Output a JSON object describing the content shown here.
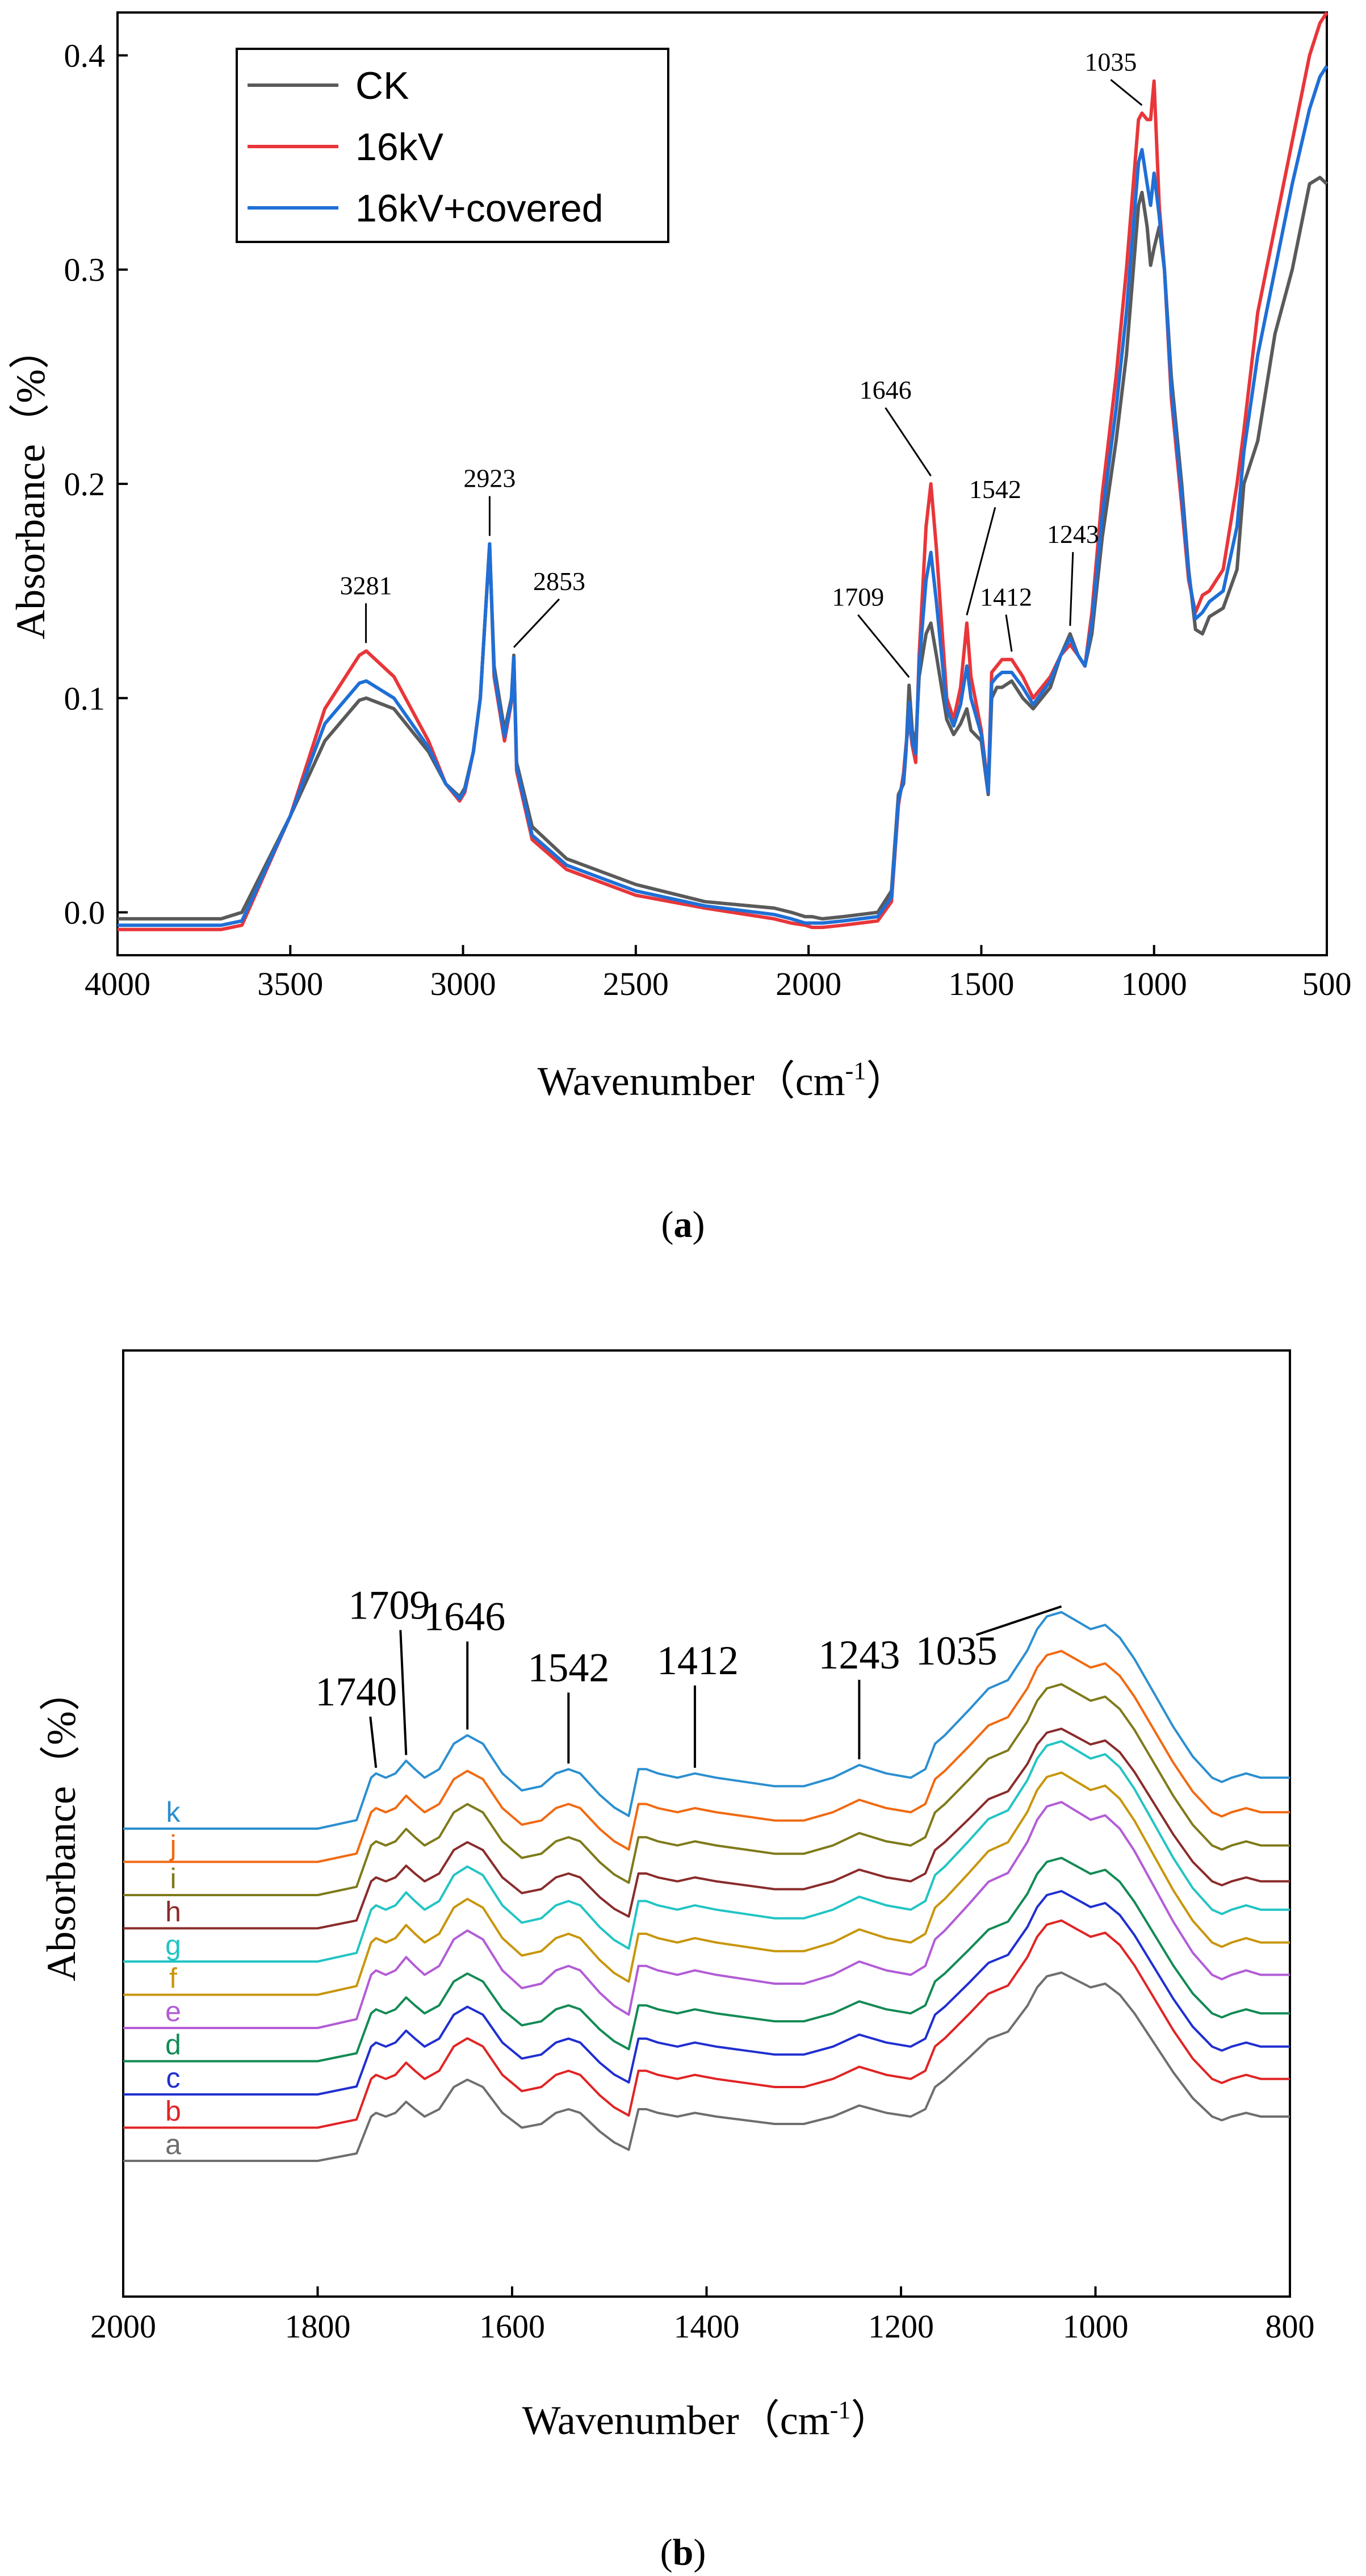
{
  "chart_data": [
    {
      "panel": "a",
      "type": "line",
      "caption_letter": "a",
      "xlabel": "Wavenumber（cm",
      "xlabel_sup": "-1",
      "xlabel_close": "）",
      "ylabel": "Absorbance（%）",
      "xlim": [
        4000,
        500
      ],
      "ylim": [
        -0.02,
        0.42
      ],
      "x_ticks": [
        "4000",
        "3500",
        "3000",
        "2500",
        "2000",
        "1500",
        "1000",
        "500"
      ],
      "x_tick_values": [
        4000,
        3500,
        3000,
        2500,
        2000,
        1500,
        1000,
        500
      ],
      "y_ticks": [
        "0.0",
        "0.1",
        "0.2",
        "0.3",
        "0.4"
      ],
      "y_tick_values": [
        0.0,
        0.1,
        0.2,
        0.3,
        0.4
      ],
      "legend": {
        "placement": "top-left",
        "entries": [
          "CK",
          "16kV",
          "16kV+covered"
        ]
      },
      "series": [
        {
          "name": "CK",
          "color": "#5a5a5a",
          "x": [
            4000,
            3700,
            3640,
            3500,
            3400,
            3300,
            3280,
            3200,
            3100,
            3050,
            3010,
            2995,
            2970,
            2950,
            2935,
            2923,
            2910,
            2880,
            2860,
            2853,
            2845,
            2800,
            2700,
            2500,
            2300,
            2100,
            2050,
            2010,
            1990,
            1960,
            1900,
            1800,
            1760,
            1740,
            1725,
            1718,
            1709,
            1700,
            1690,
            1680,
            1660,
            1646,
            1630,
            1600,
            1580,
            1560,
            1542,
            1530,
            1500,
            1480,
            1470,
            1455,
            1440,
            1412,
            1380,
            1350,
            1300,
            1270,
            1243,
            1220,
            1200,
            1180,
            1150,
            1110,
            1080,
            1060,
            1045,
            1035,
            1020,
            1010,
            1000,
            985,
            970,
            950,
            920,
            900,
            880,
            860,
            840,
            800,
            760,
            740,
            700,
            650,
            600,
            550,
            520,
            500
          ],
          "y": [
            -0.003,
            -0.003,
            0.0,
            0.045,
            0.08,
            0.099,
            0.1,
            0.095,
            0.075,
            0.06,
            0.054,
            0.058,
            0.075,
            0.1,
            0.14,
            0.17,
            0.115,
            0.085,
            0.1,
            0.12,
            0.07,
            0.04,
            0.025,
            0.013,
            0.005,
            0.002,
            0.0,
            -0.002,
            -0.002,
            -0.003,
            -0.002,
            0.0,
            0.01,
            0.055,
            0.06,
            0.075,
            0.106,
            0.085,
            0.078,
            0.11,
            0.13,
            0.135,
            0.12,
            0.09,
            0.083,
            0.088,
            0.095,
            0.085,
            0.08,
            0.055,
            0.1,
            0.105,
            0.105,
            0.108,
            0.1,
            0.095,
            0.105,
            0.12,
            0.13,
            0.12,
            0.115,
            0.13,
            0.175,
            0.22,
            0.26,
            0.3,
            0.33,
            0.336,
            0.32,
            0.302,
            0.31,
            0.32,
            0.3,
            0.25,
            0.2,
            0.16,
            0.132,
            0.13,
            0.138,
            0.142,
            0.16,
            0.2,
            0.22,
            0.27,
            0.3,
            0.34,
            0.343,
            0.34
          ]
        },
        {
          "name": "16kV",
          "color": "#e8363a",
          "x": [
            4000,
            3700,
            3640,
            3500,
            3400,
            3300,
            3280,
            3200,
            3100,
            3050,
            3010,
            2995,
            2970,
            2950,
            2935,
            2923,
            2910,
            2880,
            2860,
            2853,
            2845,
            2800,
            2700,
            2500,
            2300,
            2100,
            2050,
            2010,
            1990,
            1960,
            1900,
            1800,
            1760,
            1740,
            1725,
            1718,
            1709,
            1700,
            1690,
            1680,
            1660,
            1646,
            1630,
            1600,
            1580,
            1560,
            1542,
            1530,
            1500,
            1480,
            1470,
            1455,
            1440,
            1412,
            1380,
            1350,
            1300,
            1270,
            1243,
            1220,
            1200,
            1180,
            1150,
            1110,
            1080,
            1060,
            1045,
            1035,
            1020,
            1010,
            1000,
            985,
            970,
            950,
            920,
            900,
            880,
            860,
            840,
            800,
            760,
            740,
            700,
            650,
            600,
            550,
            520,
            500
          ],
          "y": [
            -0.008,
            -0.008,
            -0.006,
            0.045,
            0.095,
            0.12,
            0.122,
            0.11,
            0.08,
            0.06,
            0.052,
            0.056,
            0.075,
            0.1,
            0.14,
            0.172,
            0.11,
            0.08,
            0.098,
            0.119,
            0.066,
            0.034,
            0.02,
            0.008,
            0.002,
            -0.003,
            -0.005,
            -0.006,
            -0.007,
            -0.007,
            -0.006,
            -0.004,
            0.005,
            0.05,
            0.065,
            0.078,
            0.09,
            0.078,
            0.07,
            0.12,
            0.18,
            0.2,
            0.17,
            0.1,
            0.09,
            0.105,
            0.135,
            0.11,
            0.085,
            0.058,
            0.112,
            0.115,
            0.118,
            0.118,
            0.11,
            0.1,
            0.11,
            0.12,
            0.125,
            0.12,
            0.115,
            0.14,
            0.195,
            0.25,
            0.3,
            0.34,
            0.37,
            0.373,
            0.37,
            0.37,
            0.388,
            0.33,
            0.3,
            0.24,
            0.19,
            0.155,
            0.14,
            0.148,
            0.15,
            0.16,
            0.2,
            0.225,
            0.28,
            0.32,
            0.36,
            0.4,
            0.415,
            0.42
          ]
        },
        {
          "name": "16kV+covered",
          "color": "#1f6fd6",
          "x": [
            4000,
            3700,
            3640,
            3500,
            3400,
            3300,
            3280,
            3200,
            3100,
            3050,
            3010,
            2995,
            2970,
            2950,
            2935,
            2923,
            2910,
            2880,
            2860,
            2853,
            2845,
            2800,
            2700,
            2500,
            2300,
            2100,
            2050,
            2010,
            1990,
            1960,
            1900,
            1800,
            1760,
            1740,
            1725,
            1718,
            1709,
            1700,
            1690,
            1680,
            1660,
            1646,
            1630,
            1600,
            1580,
            1560,
            1542,
            1530,
            1500,
            1480,
            1470,
            1455,
            1440,
            1412,
            1380,
            1350,
            1300,
            1270,
            1243,
            1220,
            1200,
            1180,
            1150,
            1110,
            1080,
            1060,
            1045,
            1035,
            1020,
            1010,
            1000,
            985,
            970,
            950,
            920,
            900,
            880,
            860,
            840,
            800,
            760,
            740,
            700,
            650,
            600,
            550,
            520,
            500
          ],
          "y": [
            -0.006,
            -0.006,
            -0.004,
            0.045,
            0.088,
            0.107,
            0.108,
            0.1,
            0.077,
            0.06,
            0.053,
            0.057,
            0.075,
            0.1,
            0.14,
            0.172,
            0.112,
            0.082,
            0.099,
            0.119,
            0.068,
            0.036,
            0.022,
            0.01,
            0.003,
            -0.001,
            -0.003,
            -0.005,
            -0.005,
            -0.005,
            -0.004,
            -0.002,
            0.007,
            0.052,
            0.062,
            0.076,
            0.098,
            0.08,
            0.074,
            0.115,
            0.155,
            0.168,
            0.145,
            0.095,
            0.087,
            0.097,
            0.115,
            0.1,
            0.083,
            0.056,
            0.107,
            0.11,
            0.112,
            0.112,
            0.105,
            0.097,
            0.108,
            0.12,
            0.128,
            0.12,
            0.115,
            0.135,
            0.185,
            0.235,
            0.28,
            0.32,
            0.35,
            0.356,
            0.34,
            0.33,
            0.345,
            0.325,
            0.3,
            0.245,
            0.195,
            0.158,
            0.137,
            0.14,
            0.145,
            0.15,
            0.18,
            0.215,
            0.26,
            0.3,
            0.34,
            0.375,
            0.39,
            0.395
          ]
        }
      ],
      "annotations": [
        {
          "text": "3281",
          "x": 3281,
          "y": 0.122
        },
        {
          "text": "2923",
          "x": 2923,
          "y": 0.172
        },
        {
          "text": "2853",
          "x": 2853,
          "y": 0.12
        },
        {
          "text": "1709",
          "x": 1709,
          "y": 0.106
        },
        {
          "text": "1646",
          "x": 1646,
          "y": 0.2
        },
        {
          "text": "1542",
          "x": 1542,
          "y": 0.135
        },
        {
          "text": "1412",
          "x": 1412,
          "y": 0.118
        },
        {
          "text": "1243",
          "x": 1243,
          "y": 0.13
        },
        {
          "text": "1035",
          "x": 1035,
          "y": 0.373
        }
      ]
    },
    {
      "panel": "b",
      "type": "line",
      "caption_letter": "b",
      "xlabel": "Wavenumber（cm",
      "xlabel_sup": "-1",
      "xlabel_close": "）",
      "ylabel": "Absorbance（%）",
      "xlim": [
        2000,
        800
      ],
      "ylim": [
        0,
        1.6
      ],
      "x_ticks": [
        "2000",
        "1800",
        "1600",
        "1400",
        "1200",
        "1000",
        "800"
      ],
      "x_tick_values": [
        2000,
        1800,
        1600,
        1400,
        1200,
        1000,
        800
      ],
      "y_ticks": [],
      "base_profile": {
        "x": [
          2000,
          1800,
          1760,
          1745,
          1740,
          1730,
          1720,
          1709,
          1700,
          1690,
          1675,
          1660,
          1646,
          1630,
          1610,
          1590,
          1570,
          1555,
          1542,
          1530,
          1510,
          1495,
          1480,
          1470,
          1462,
          1450,
          1430,
          1412,
          1390,
          1360,
          1330,
          1300,
          1270,
          1243,
          1215,
          1190,
          1175,
          1165,
          1155,
          1130,
          1110,
          1090,
          1070,
          1060,
          1050,
          1035,
          1020,
          1005,
          990,
          975,
          960,
          940,
          920,
          900,
          880,
          870,
          860,
          845,
          830,
          815,
          800
        ],
        "y": [
          0.0,
          0.0,
          0.02,
          0.12,
          0.13,
          0.12,
          0.13,
          0.16,
          0.14,
          0.12,
          0.14,
          0.2,
          0.22,
          0.2,
          0.13,
          0.09,
          0.1,
          0.13,
          0.14,
          0.13,
          0.08,
          0.05,
          0.03,
          0.14,
          0.14,
          0.13,
          0.12,
          0.13,
          0.12,
          0.11,
          0.1,
          0.1,
          0.12,
          0.15,
          0.13,
          0.12,
          0.14,
          0.2,
          0.22,
          0.28,
          0.33,
          0.35,
          0.42,
          0.47,
          0.5,
          0.51,
          0.49,
          0.47,
          0.48,
          0.45,
          0.4,
          0.32,
          0.24,
          0.17,
          0.12,
          0.11,
          0.12,
          0.13,
          0.12,
          0.12,
          0.12
        ]
      },
      "series": [
        {
          "label": "a",
          "name": "a",
          "color": "#6e6e6e",
          "offset": 0.0,
          "scale": 1.0
        },
        {
          "label": "b",
          "name": "b",
          "color": "#e02424",
          "offset": 0.09,
          "scale": 1.1
        },
        {
          "label": "c",
          "name": "c",
          "color": "#1f2fd0",
          "offset": 0.18,
          "scale": 1.08
        },
        {
          "label": "d",
          "name": "d",
          "color": "#138a55",
          "offset": 0.27,
          "scale": 1.08
        },
        {
          "label": "e",
          "name": "e",
          "color": "#b25cd6",
          "offset": 0.36,
          "scale": 1.2
        },
        {
          "label": "f",
          "name": "f",
          "color": "#c8960c",
          "offset": 0.45,
          "scale": 1.18
        },
        {
          "label": "g",
          "name": "g",
          "color": "#22c4c4",
          "offset": 0.54,
          "scale": 1.17
        },
        {
          "label": "h",
          "name": "h",
          "color": "#8a2b2b",
          "offset": 0.63,
          "scale": 1.06
        },
        {
          "label": "i",
          "name": "i",
          "color": "#7e7a1a",
          "offset": 0.72,
          "scale": 1.12
        },
        {
          "label": "j",
          "name": "j",
          "color": "#f06a12",
          "offset": 0.81,
          "scale": 1.12
        },
        {
          "label": "k",
          "name": "k",
          "color": "#2b8fd0",
          "offset": 0.9,
          "scale": 1.15
        }
      ],
      "annotations": [
        {
          "text": "1740",
          "x": 1740
        },
        {
          "text": "1709",
          "x": 1709
        },
        {
          "text": "1646",
          "x": 1646
        },
        {
          "text": "1542",
          "x": 1542
        },
        {
          "text": "1412",
          "x": 1412
        },
        {
          "text": "1243",
          "x": 1243
        },
        {
          "text": "1035",
          "x": 1035
        }
      ]
    }
  ]
}
